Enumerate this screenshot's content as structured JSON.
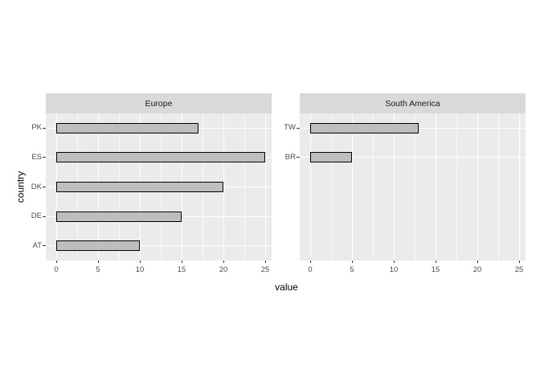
{
  "chart_data": {
    "type": "bar",
    "orientation": "horizontal",
    "xlabel": "value",
    "ylabel": "country",
    "xlim": [
      0,
      25
    ],
    "x_ticks": [
      0,
      5,
      10,
      15,
      20,
      25
    ],
    "x_minor_ticks": [
      2.5,
      7.5,
      12.5,
      17.5,
      22.5
    ],
    "grid": "on",
    "rows_per_panel": 5,
    "facets": [
      {
        "label": "Europe",
        "categories": [
          "PK",
          "ES",
          "DK",
          "DE",
          "AT"
        ],
        "values": [
          17,
          25,
          20,
          15,
          10
        ]
      },
      {
        "label": "South America",
        "categories": [
          "TW",
          "BR"
        ],
        "values": [
          13,
          5
        ]
      }
    ],
    "colors": {
      "figure_bg": "#ffffff",
      "panel_bg": "#ebebeb",
      "strip_bg": "#d9d9d9",
      "strip_text": "#1a1a1a",
      "grid": "#ffffff",
      "bar_fill": "#bebebe",
      "bar_border": "#000000",
      "axis_text": "#4d4d4d",
      "tick": "#333333",
      "axis_title": "#000000"
    }
  }
}
